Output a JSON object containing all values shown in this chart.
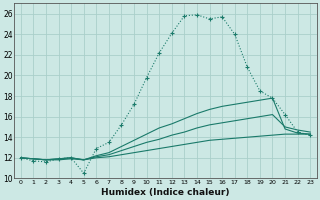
{
  "xlabel": "Humidex (Indice chaleur)",
  "bg_color": "#cce8e4",
  "line_color": "#1a7a6a",
  "grid_color": "#aacfca",
  "xlim": [
    -0.5,
    23.5
  ],
  "ylim": [
    10,
    27
  ],
  "yticks": [
    10,
    12,
    14,
    16,
    18,
    20,
    22,
    24,
    26
  ],
  "xticks": [
    0,
    1,
    2,
    3,
    4,
    5,
    6,
    7,
    8,
    9,
    10,
    11,
    12,
    13,
    14,
    15,
    16,
    17,
    18,
    19,
    20,
    21,
    22,
    23
  ],
  "series1_x": [
    0,
    1,
    2,
    3,
    4,
    5,
    6,
    7,
    8,
    9,
    10,
    11,
    12,
    13,
    14,
    15,
    16,
    17,
    18,
    19,
    20,
    21,
    22,
    23
  ],
  "series1_y": [
    12.0,
    11.7,
    11.6,
    11.9,
    12.0,
    10.5,
    12.9,
    13.5,
    15.2,
    17.2,
    19.8,
    22.2,
    24.1,
    25.8,
    25.9,
    25.5,
    25.7,
    24.0,
    20.8,
    18.5,
    17.8,
    16.2,
    14.5,
    14.2
  ],
  "series2_x": [
    0,
    1,
    2,
    3,
    4,
    5,
    6,
    7,
    8,
    9,
    10,
    11,
    12,
    13,
    14,
    15,
    16,
    17,
    18,
    19,
    20,
    21,
    22,
    23
  ],
  "series2_y": [
    12.0,
    11.9,
    11.8,
    11.8,
    11.9,
    11.8,
    12.0,
    12.1,
    12.3,
    12.5,
    12.7,
    12.9,
    13.1,
    13.3,
    13.5,
    13.7,
    13.8,
    13.9,
    14.0,
    14.1,
    14.2,
    14.3,
    14.3,
    14.3
  ],
  "series3_x": [
    0,
    1,
    2,
    3,
    4,
    5,
    6,
    7,
    8,
    9,
    10,
    11,
    12,
    13,
    14,
    15,
    16,
    17,
    18,
    19,
    20,
    21,
    22,
    23
  ],
  "series3_y": [
    12.0,
    11.9,
    11.8,
    11.9,
    12.0,
    11.8,
    12.1,
    12.3,
    12.7,
    13.1,
    13.5,
    13.8,
    14.2,
    14.5,
    14.9,
    15.2,
    15.4,
    15.6,
    15.8,
    16.0,
    16.2,
    15.0,
    14.7,
    14.5
  ],
  "series4_x": [
    0,
    1,
    2,
    3,
    4,
    5,
    6,
    7,
    8,
    9,
    10,
    11,
    12,
    13,
    14,
    15,
    16,
    17,
    18,
    19,
    20,
    21,
    22,
    23
  ],
  "series4_y": [
    12.0,
    11.9,
    11.8,
    11.9,
    12.0,
    11.8,
    12.2,
    12.5,
    13.1,
    13.7,
    14.3,
    14.9,
    15.3,
    15.8,
    16.3,
    16.7,
    17.0,
    17.2,
    17.4,
    17.6,
    17.8,
    14.8,
    14.4,
    14.3
  ]
}
